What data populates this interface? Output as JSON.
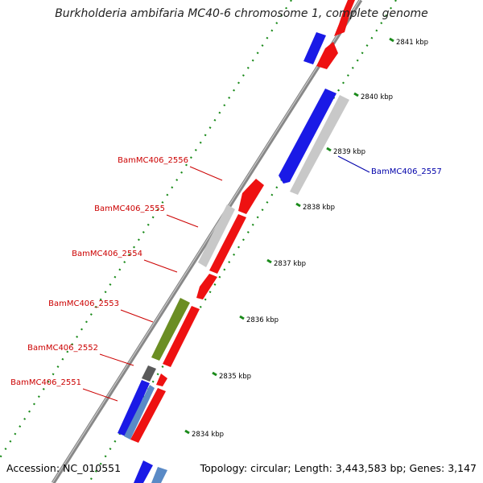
{
  "title": "Burkholderia ambifaria MC40-6 chromosome 1, complete genome",
  "footer": {
    "accession": "Accession: NC_010551",
    "summary": "Topology: circular; Length: 3,443,583 bp; Genes: 3,147"
  },
  "colors": {
    "forward_gene": "#ee1111",
    "reverse_gene": "#1a1ae6",
    "gray_gene": "#c8c8c8",
    "olive_gene": "#6b8e23",
    "dark_gray_gene": "#5a5a5a",
    "steel_gene": "#5a8ac6",
    "backbone": "#808080",
    "tick": "#1a8a1a",
    "label_forward": "#cc0000",
    "label_reverse": "#0000aa"
  },
  "scale_ticks": [
    {
      "label": "2841 kbp"
    },
    {
      "label": "2840 kbp"
    },
    {
      "label": "2839 kbp"
    },
    {
      "label": "2838 kbp"
    },
    {
      "label": "2837 kbp"
    },
    {
      "label": "2836 kbp"
    },
    {
      "label": "2835 kbp"
    },
    {
      "label": "2834 kbp"
    }
  ],
  "gene_labels": [
    {
      "text": "BamMC406_2556",
      "strand": "forward"
    },
    {
      "text": "BamMC406_2555",
      "strand": "forward"
    },
    {
      "text": "BamMC406_2554",
      "strand": "forward"
    },
    {
      "text": "BamMC406_2553",
      "strand": "forward"
    },
    {
      "text": "BamMC406_2552",
      "strand": "forward"
    },
    {
      "text": "BamMC406_2551",
      "strand": "forward"
    },
    {
      "text": "BamMC406_2557",
      "strand": "reverse"
    }
  ]
}
